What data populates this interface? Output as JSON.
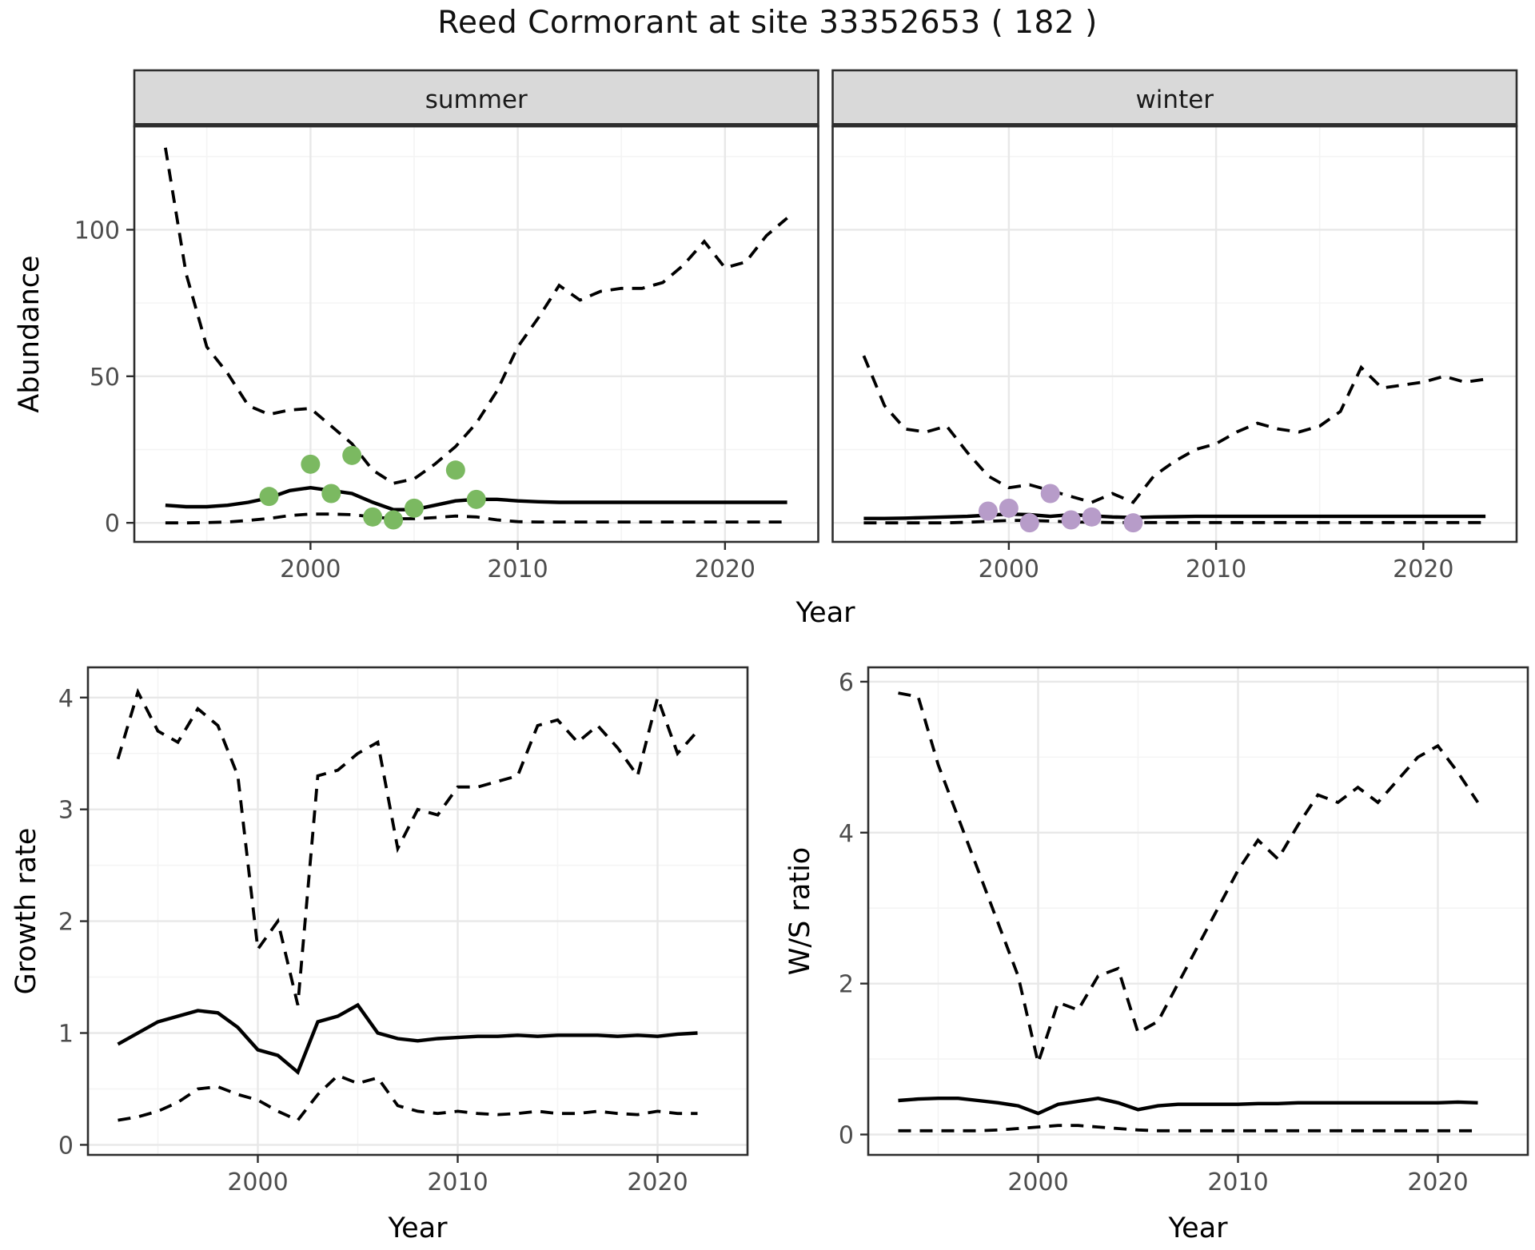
{
  "title": "Reed Cormorant at site 33352653 ( 182 )",
  "colors": {
    "summer_points": "#7bb961",
    "winter_points": "#b79cc9",
    "line": "#000000",
    "strip_bg": "#d9d9d9",
    "panel_bg": "#ffffff",
    "grid_major": "#e8e8e8",
    "grid_minor": "#f4f4f4",
    "tick_text": "#4d4d4d",
    "axis_title_text": "#000000",
    "panel_border": "#2e2e2e"
  },
  "shared_xlabel_top": "Year",
  "chart_data": [
    {
      "id": "abundance-summer",
      "type": "line",
      "facet_label": "summer",
      "ylabel": "Abundance",
      "xlabel": "Year",
      "legend": "none",
      "grid": true,
      "xlim": [
        1991.5,
        2024.5
      ],
      "ylim": [
        -6.5,
        135.3
      ],
      "xticks": [
        2000,
        2010,
        2020
      ],
      "xtick_labels": [
        "2000",
        "2010",
        "2020"
      ],
      "yticks": [
        0,
        50,
        100
      ],
      "ytick_labels": [
        "0",
        "50",
        "100"
      ],
      "x": [
        1993,
        1994,
        1995,
        1996,
        1997,
        1998,
        1999,
        2000,
        2001,
        2002,
        2003,
        2004,
        2005,
        2006,
        2007,
        2008,
        2009,
        2010,
        2011,
        2012,
        2013,
        2014,
        2015,
        2016,
        2017,
        2018,
        2019,
        2020,
        2021,
        2022,
        2023
      ],
      "series": [
        {
          "name": "upper_credible",
          "style": "dashed",
          "values": [
            128,
            85,
            60,
            51,
            40,
            37,
            38.5,
            39,
            33,
            27,
            18,
            13.5,
            15,
            20,
            26,
            34,
            45,
            60,
            70,
            81,
            76,
            79,
            80,
            80,
            82,
            88,
            96,
            87,
            89,
            98,
            104
          ]
        },
        {
          "name": "median",
          "style": "solid",
          "values": [
            6,
            5.5,
            5.5,
            6,
            7,
            8.5,
            11,
            12,
            11,
            10,
            7,
            4.5,
            4.5,
            6,
            7.5,
            8,
            8,
            7.5,
            7.2,
            7,
            7,
            7,
            7,
            7,
            7,
            7,
            7,
            7,
            7,
            7,
            7
          ]
        },
        {
          "name": "lower_credible",
          "style": "dashed",
          "values": [
            0,
            0,
            0.1,
            0.3,
            0.8,
            1.5,
            2.5,
            3,
            3,
            2.8,
            2,
            1.4,
            1.4,
            1.8,
            2.3,
            2,
            1,
            0.4,
            0.3,
            0.3,
            0.3,
            0.3,
            0.3,
            0.3,
            0.3,
            0.3,
            0.3,
            0.3,
            0.3,
            0.3,
            0.3
          ]
        }
      ],
      "points": {
        "name": "observed_counts_summer",
        "color_key": "summer_points",
        "x": [
          1998,
          2000,
          2001,
          2002,
          2003,
          2004,
          2005,
          2007,
          2008
        ],
        "y": [
          9,
          20,
          10,
          23,
          2,
          1,
          5,
          18,
          8
        ]
      }
    },
    {
      "id": "abundance-winter",
      "type": "line",
      "facet_label": "winter",
      "ylabel": null,
      "xlabel": "Year",
      "legend": "none",
      "grid": true,
      "xlim": [
        1991.5,
        2024.5
      ],
      "ylim": [
        -6.5,
        135.3
      ],
      "xticks": [
        2000,
        2010,
        2020
      ],
      "xtick_labels": [
        "2000",
        "2010",
        "2020"
      ],
      "yticks": [
        0,
        50,
        100
      ],
      "ytick_labels": [
        "0",
        "50",
        "100"
      ],
      "x": [
        1993,
        1994,
        1995,
        1996,
        1997,
        1998,
        1999,
        2000,
        2001,
        2002,
        2003,
        2004,
        2005,
        2006,
        2007,
        2008,
        2009,
        2010,
        2011,
        2012,
        2013,
        2014,
        2015,
        2016,
        2017,
        2018,
        2019,
        2020,
        2021,
        2022,
        2023
      ],
      "series": [
        {
          "name": "upper_credible",
          "style": "dashed",
          "values": [
            57,
            40,
            32,
            31,
            33,
            24,
            16,
            12,
            13,
            11,
            9,
            7,
            10,
            7,
            16,
            21,
            25,
            27,
            31,
            34,
            32,
            31,
            33,
            38,
            53,
            46,
            47,
            48,
            50,
            48,
            49
          ]
        },
        {
          "name": "median",
          "style": "solid",
          "values": [
            1.5,
            1.5,
            1.6,
            1.8,
            2,
            2.2,
            2.6,
            3,
            2.8,
            2.2,
            2.8,
            2.4,
            2,
            1.8,
            2,
            2.1,
            2.2,
            2.2,
            2.2,
            2.2,
            2.2,
            2.2,
            2.2,
            2.2,
            2.2,
            2.2,
            2.2,
            2.2,
            2.2,
            2.2,
            2.2
          ]
        },
        {
          "name": "lower_credible",
          "style": "dashed",
          "values": [
            0,
            0,
            0,
            0,
            0,
            0.2,
            0.5,
            0.8,
            0.8,
            0.6,
            0.3,
            0.2,
            0.1,
            0.1,
            0.1,
            0.1,
            0.1,
            0.1,
            0.1,
            0.1,
            0.1,
            0.1,
            0.1,
            0.1,
            0.1,
            0.1,
            0.1,
            0.1,
            0.1,
            0.1,
            0.1
          ]
        }
      ],
      "points": {
        "name": "observed_counts_winter",
        "color_key": "winter_points",
        "x": [
          1999,
          2000,
          2001,
          2002,
          2003,
          2004,
          2006
        ],
        "y": [
          4,
          5,
          0,
          10,
          1,
          2,
          0
        ]
      }
    },
    {
      "id": "growth-rate",
      "type": "line",
      "facet_label": null,
      "ylabel": "Growth rate",
      "xlabel": "Year",
      "legend": "none",
      "grid": true,
      "xlim": [
        1991.5,
        2024.5
      ],
      "ylim": [
        -0.09,
        4.27
      ],
      "xticks": [
        2000,
        2010,
        2020
      ],
      "xtick_labels": [
        "2000",
        "2010",
        "2020"
      ],
      "yticks": [
        0,
        1,
        2,
        3,
        4
      ],
      "ytick_labels": [
        "0",
        "1",
        "2",
        "3",
        "4"
      ],
      "x": [
        1993,
        1994,
        1995,
        1996,
        1997,
        1998,
        1999,
        2000,
        2001,
        2002,
        2003,
        2004,
        2005,
        2006,
        2007,
        2008,
        2009,
        2010,
        2011,
        2012,
        2013,
        2014,
        2015,
        2016,
        2017,
        2018,
        2019,
        2020,
        2021,
        2022
      ],
      "series": [
        {
          "name": "upper_credible",
          "style": "dashed",
          "values": [
            3.45,
            4.05,
            3.7,
            3.6,
            3.9,
            3.75,
            3.3,
            1.75,
            2.0,
            1.25,
            3.3,
            3.35,
            3.5,
            3.6,
            2.65,
            3.0,
            2.95,
            3.2,
            3.2,
            3.25,
            3.3,
            3.75,
            3.8,
            3.6,
            3.75,
            3.55,
            3.3,
            4.0,
            3.5,
            3.7
          ]
        },
        {
          "name": "median",
          "style": "solid",
          "values": [
            0.9,
            1.0,
            1.1,
            1.15,
            1.2,
            1.18,
            1.05,
            0.85,
            0.8,
            0.65,
            1.1,
            1.15,
            1.25,
            1.0,
            0.95,
            0.93,
            0.95,
            0.96,
            0.97,
            0.97,
            0.98,
            0.97,
            0.98,
            0.98,
            0.98,
            0.97,
            0.98,
            0.97,
            0.99,
            1.0
          ]
        },
        {
          "name": "lower_credible",
          "style": "dashed",
          "values": [
            0.22,
            0.25,
            0.3,
            0.38,
            0.5,
            0.52,
            0.45,
            0.4,
            0.3,
            0.22,
            0.45,
            0.62,
            0.55,
            0.6,
            0.35,
            0.3,
            0.28,
            0.3,
            0.28,
            0.27,
            0.28,
            0.3,
            0.28,
            0.28,
            0.3,
            0.28,
            0.27,
            0.3,
            0.28,
            0.28
          ]
        }
      ],
      "points": null
    },
    {
      "id": "ws-ratio",
      "type": "line",
      "facet_label": null,
      "ylabel": "W/S ratio",
      "xlabel": "Year",
      "legend": "none",
      "grid": true,
      "xlim": [
        1991.5,
        2024.5
      ],
      "ylim": [
        -0.27,
        6.19
      ],
      "xticks": [
        2000,
        2010,
        2020
      ],
      "xtick_labels": [
        "2000",
        "2010",
        "2020"
      ],
      "yticks": [
        0,
        2,
        4,
        6
      ],
      "ytick_labels": [
        "0",
        "2",
        "4",
        "6"
      ],
      "x": [
        1993,
        1994,
        1995,
        1996,
        1997,
        1998,
        1999,
        2000,
        2001,
        2002,
        2003,
        2004,
        2005,
        2006,
        2007,
        2008,
        2009,
        2010,
        2011,
        2012,
        2013,
        2014,
        2015,
        2016,
        2017,
        2018,
        2019,
        2020,
        2021,
        2022
      ],
      "series": [
        {
          "name": "upper_credible",
          "style": "dashed",
          "values": [
            5.85,
            5.8,
            4.9,
            4.2,
            3.5,
            2.8,
            2.1,
            0.95,
            1.75,
            1.65,
            2.1,
            2.2,
            1.35,
            1.5,
            2.0,
            2.5,
            3.0,
            3.5,
            3.9,
            3.65,
            4.1,
            4.5,
            4.4,
            4.6,
            4.4,
            4.7,
            5.0,
            5.15,
            4.8,
            4.4
          ]
        },
        {
          "name": "median",
          "style": "solid",
          "values": [
            0.45,
            0.47,
            0.48,
            0.48,
            0.45,
            0.42,
            0.38,
            0.28,
            0.4,
            0.44,
            0.48,
            0.42,
            0.33,
            0.38,
            0.4,
            0.4,
            0.4,
            0.4,
            0.41,
            0.41,
            0.42,
            0.42,
            0.42,
            0.42,
            0.42,
            0.42,
            0.42,
            0.42,
            0.43,
            0.42
          ]
        },
        {
          "name": "lower_credible",
          "style": "dashed",
          "values": [
            0.05,
            0.05,
            0.05,
            0.05,
            0.05,
            0.06,
            0.08,
            0.1,
            0.12,
            0.12,
            0.1,
            0.08,
            0.06,
            0.05,
            0.05,
            0.05,
            0.05,
            0.05,
            0.05,
            0.05,
            0.05,
            0.05,
            0.05,
            0.05,
            0.05,
            0.05,
            0.05,
            0.05,
            0.05,
            0.05
          ]
        }
      ],
      "points": null
    }
  ]
}
